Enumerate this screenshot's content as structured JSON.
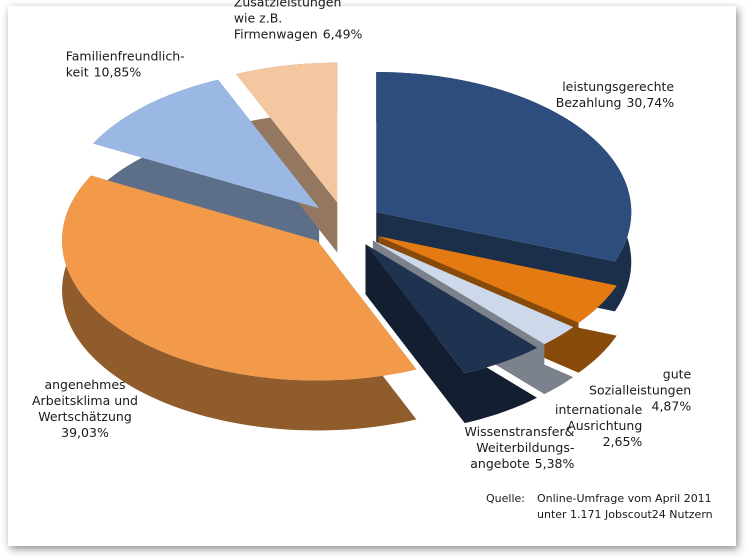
{
  "chart_data": {
    "type": "pie",
    "categories": [
      [
        "leistungsgerechte",
        "Bezahlung"
      ],
      [
        "gute",
        "Sozialleistungen"
      ],
      [
        "internationale",
        "Ausrichtung"
      ],
      [
        "Wissenstransfer&",
        "Weiterbildungs-",
        "angebote"
      ],
      [
        "angenehmes",
        "Arbeitsklima und",
        "Wertschätzung"
      ],
      [
        "Familienfreundlich-",
        "keit"
      ],
      [
        "Zusatzleistungen",
        "wie z.B.",
        "Firmenwagen"
      ]
    ],
    "values": [
      30.74,
      4.87,
      2.65,
      5.38,
      39.03,
      10.85,
      6.49
    ],
    "value_labels": [
      "30,74%",
      "4,87%",
      "2,65%",
      "5,38%",
      "39,03%",
      "10,85%",
      "6,49%"
    ],
    "colors": [
      "#2d4d7c",
      "#e37b12",
      "#cdd9ea",
      "#1f3350",
      "#f2994a",
      "#9ab8e3",
      "#f5c7a0"
    ],
    "source": [
      "Quelle:",
      "Online-Umfrage vom April 2011",
      "unter 1.171 Jobscout24 Nutzern"
    ]
  }
}
